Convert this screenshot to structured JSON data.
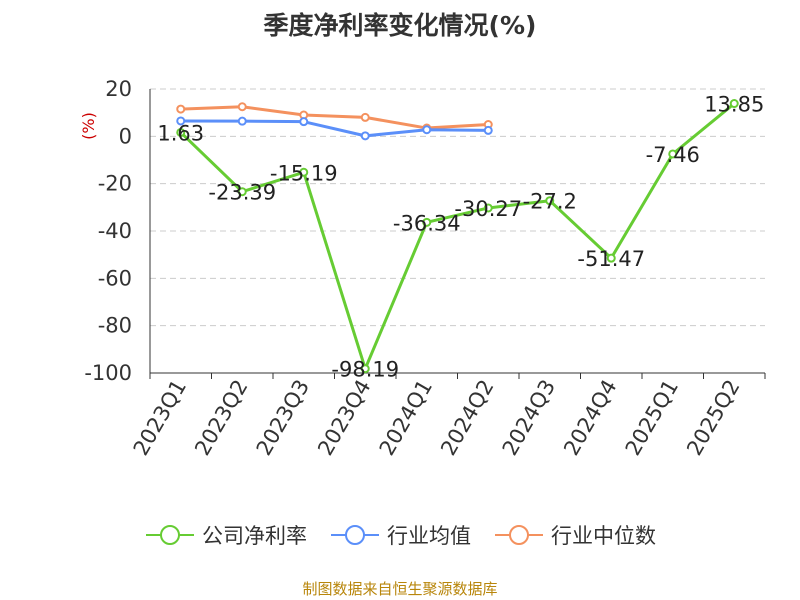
{
  "chart_data": {
    "type": "line",
    "title": "季度净利率变化情况(%)",
    "ylabel": "(%)",
    "ylim": [
      -100,
      20
    ],
    "yticks": [
      20,
      0,
      -20,
      -40,
      -60,
      -80,
      -100
    ],
    "categories": [
      "2023Q1",
      "2023Q2",
      "2023Q3",
      "2023Q4",
      "2024Q1",
      "2024Q2",
      "2024Q3",
      "2024Q4",
      "2025Q1",
      "2025Q2"
    ],
    "grid": true,
    "legend_position": "bottom",
    "series": [
      {
        "name": "公司净利率",
        "color": "#66cc33",
        "values": [
          1.63,
          -23.39,
          -15.19,
          -98.19,
          -36.34,
          -30.27,
          -27.2,
          -51.47,
          -7.46,
          13.85
        ],
        "labels": [
          "1.63",
          "-23.39",
          "-15.19",
          "-98.19",
          "-36.34",
          "-30.27",
          "-27.2",
          "-51.47",
          "-7.46",
          "13.85"
        ]
      },
      {
        "name": "行业均值",
        "color": "#5b8ff9",
        "values": [
          6.5,
          6.4,
          6.2,
          0.2,
          2.8,
          2.5,
          null,
          null,
          null,
          null
        ]
      },
      {
        "name": "行业中位数",
        "color": "#f4915e",
        "values": [
          11.5,
          12.5,
          9.0,
          8.0,
          3.5,
          5.0,
          null,
          null,
          null,
          null
        ]
      }
    ]
  },
  "footer": {
    "source": "制图数据来自恒生聚源数据库"
  }
}
